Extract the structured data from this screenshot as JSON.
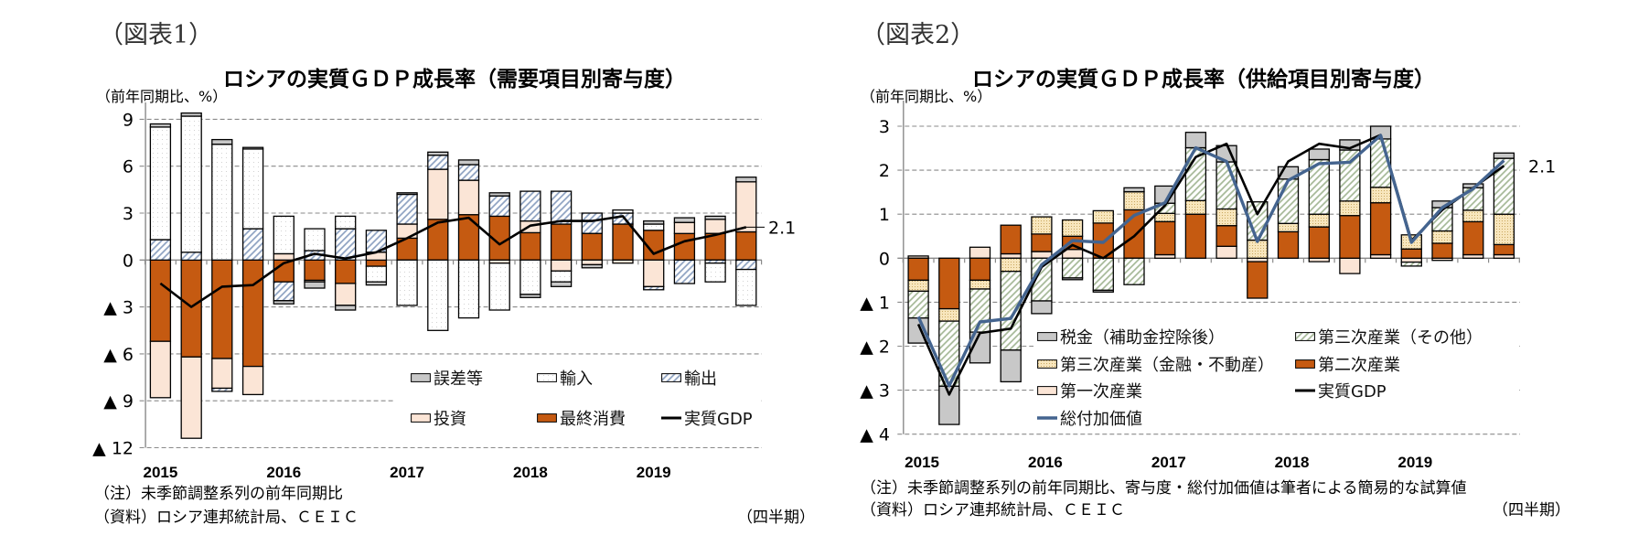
{
  "figures": [
    {
      "figure_label": "（図表1）",
      "note": "（注）未季節調整系列の前年同期比",
      "source": "（資料）ロシア連邦統計局、ＣＥＩＣ"
    },
    {
      "figure_label": "（図表2）",
      "note": "（注）未季節調整系列の前年同期比、寄与度・総付加価値は筆者による簡易的な試算値",
      "source": "（資料）ロシア連邦統計局、ＣＥＩＣ"
    }
  ],
  "chart_data": [
    {
      "type": "bar",
      "stacked": true,
      "title": "ロシアの実質ＧＤＰ成長率（需要項目別寄与度）",
      "ylabel": "（前年同期比、%）",
      "xlabel": "（四半期）",
      "categories": [
        "2015Q1",
        "2015Q2",
        "2015Q3",
        "2015Q4",
        "2016Q1",
        "2016Q2",
        "2016Q3",
        "2016Q4",
        "2017Q1",
        "2017Q2",
        "2017Q3",
        "2017Q4",
        "2018Q1",
        "2018Q2",
        "2018Q3",
        "2018Q4",
        "2019Q1",
        "2019Q2",
        "2019Q3",
        "2019Q4"
      ],
      "year_labels": [
        "2015",
        "2016",
        "2017",
        "2018",
        "2019"
      ],
      "ylim": [
        -12,
        9
      ],
      "yticks": [
        9,
        6,
        3,
        0,
        -3,
        -6,
        -9,
        -12
      ],
      "ytick_labels": [
        "9",
        "6",
        "3",
        "0",
        "▲ 3",
        "▲ 6",
        "▲ 9",
        "▲ 12"
      ],
      "grid": true,
      "legend_position": "bottom-right",
      "series": [
        {
          "key": "consumption",
          "name": "最終消費",
          "color": "#c55a11",
          "pattern": "solid",
          "values": [
            -5.2,
            -6.2,
            -6.3,
            -6.8,
            -1.4,
            -1.3,
            -1.5,
            -0.4,
            1.4,
            2.6,
            2.9,
            2.8,
            1.75,
            2.3,
            1.7,
            2.3,
            1.9,
            1.7,
            1.7,
            1.8
          ]
        },
        {
          "key": "investment",
          "name": "投資",
          "color": "#fbe5d6",
          "pattern": "solid",
          "values": [
            -3.6,
            -5.2,
            -1.9,
            -1.8,
            0.4,
            -0.1,
            -1.4,
            0.5,
            0.9,
            3.2,
            2.2,
            -0.2,
            0.75,
            -0.7,
            -0.3,
            -0.2,
            -1.7,
            0.7,
            0.9,
            3.2
          ]
        },
        {
          "key": "exports",
          "name": "輸出",
          "color": "#ffffff",
          "pattern": "hatch",
          "pattern_color": "#8ba0c0",
          "values": [
            1.3,
            0.5,
            -0.2,
            2.0,
            -1.2,
            0.6,
            2.0,
            1.4,
            1.9,
            0.9,
            1.0,
            1.3,
            1.9,
            2.1,
            1.3,
            0.7,
            -0.2,
            -1.5,
            -0.2,
            -0.6
          ]
        },
        {
          "key": "imports",
          "name": "輸入",
          "color": "#ffffff",
          "pattern": "dots",
          "pattern_color": "#d2d2d2",
          "values": [
            7.2,
            8.7,
            7.4,
            5.1,
            2.4,
            1.4,
            0.8,
            -1.0,
            -2.9,
            -4.5,
            -3.7,
            -3.0,
            -2.2,
            -0.7,
            0.0,
            0.2,
            0.4,
            0.0,
            -1.2,
            -2.3
          ]
        },
        {
          "key": "errors",
          "name": "誤差等",
          "color": "#c8c8c8",
          "pattern": "solid",
          "values": [
            0.2,
            0.2,
            0.3,
            0.1,
            -0.2,
            -0.4,
            -0.3,
            -0.2,
            0.1,
            0.2,
            0.3,
            0.2,
            -0.2,
            -0.3,
            -0.2,
            0.0,
            0.2,
            0.3,
            0.2,
            0.3
          ]
        }
      ],
      "line_series": [
        {
          "key": "real_gdp",
          "name": "実質GDP",
          "color": "#000000",
          "values": [
            -1.5,
            -3.0,
            -1.7,
            -1.6,
            -0.2,
            0.4,
            0.1,
            0.5,
            1.4,
            2.4,
            2.7,
            1.0,
            2.2,
            2.5,
            2.5,
            2.8,
            0.4,
            1.2,
            1.6,
            2.1
          ]
        }
      ],
      "legend": [
        {
          "label": "誤差等",
          "key": "errors"
        },
        {
          "label": "輸入",
          "key": "imports"
        },
        {
          "label": "輸出",
          "key": "exports"
        },
        {
          "label": "投資",
          "key": "investment"
        },
        {
          "label": "最終消費",
          "key": "consumption"
        },
        {
          "label": "実質GDP",
          "key": "real_gdp"
        }
      ],
      "annotation": {
        "text": "2.1",
        "value": 2.1,
        "at": "2019Q4"
      }
    },
    {
      "type": "bar",
      "stacked": true,
      "title": "ロシアの実質ＧＤＰ成長率（供給項目別寄与度）",
      "ylabel": "（前年同期比、%）",
      "xlabel": "（四半期）",
      "categories": [
        "2015Q1",
        "2015Q2",
        "2015Q3",
        "2015Q4",
        "2016Q1",
        "2016Q2",
        "2016Q3",
        "2016Q4",
        "2017Q1",
        "2017Q2",
        "2017Q3",
        "2017Q4",
        "2018Q1",
        "2018Q2",
        "2018Q3",
        "2018Q4",
        "2019Q1",
        "2019Q2",
        "2019Q3",
        "2019Q4"
      ],
      "year_labels": [
        "2015",
        "2016",
        "2017",
        "2018",
        "2019"
      ],
      "ylim": [
        -4,
        3
      ],
      "yticks": [
        3,
        2,
        1,
        0,
        -1,
        -2,
        -3,
        -4
      ],
      "ytick_labels": [
        "3",
        "2",
        "1",
        "0",
        "▲ 1",
        "▲ 2",
        "▲ 3",
        "▲ 4"
      ],
      "grid": true,
      "legend_position": "bottom-right",
      "series": [
        {
          "key": "primary",
          "name": "第一次産業",
          "color": "#fbe5d6",
          "pattern": "solid",
          "values": [
            0.05,
            0.0,
            0.25,
            0.1,
            0.15,
            0.2,
            0.0,
            0.0,
            0.08,
            0.0,
            0.27,
            -0.08,
            0.0,
            -0.08,
            -0.35,
            0.08,
            -0.09,
            -0.05,
            0.08,
            0.08
          ]
        },
        {
          "key": "secondary",
          "name": "第二次産業",
          "color": "#c55a11",
          "pattern": "solid",
          "values": [
            -0.5,
            -1.15,
            -0.5,
            0.65,
            0.4,
            0.3,
            0.8,
            1.1,
            0.75,
            1.0,
            0.47,
            -0.83,
            0.6,
            0.71,
            0.97,
            1.18,
            0.21,
            0.34,
            0.75,
            0.23
          ]
        },
        {
          "key": "financial",
          "name": "第三次産業（金融・不動産）",
          "color": "#f8e6bd",
          "pattern": "dots-dense",
          "pattern_color": "#c9a962",
          "values": [
            -0.25,
            -0.28,
            -0.2,
            -0.3,
            0.39,
            0.37,
            0.28,
            0.41,
            0.19,
            0.31,
            0.38,
            0.41,
            0.19,
            0.29,
            0.33,
            0.35,
            0.32,
            0.28,
            0.26,
            0.69
          ]
        },
        {
          "key": "tertiary_other",
          "name": "第三次産業（その他）",
          "color": "#ffffff",
          "pattern": "hatch",
          "pattern_color": "#a3b795",
          "values": [
            -0.61,
            -1.48,
            -0.98,
            -1.79,
            -0.97,
            -0.45,
            -0.73,
            -0.6,
            0.23,
            1.2,
            1.07,
            0.87,
            1.01,
            1.24,
            1.16,
            1.1,
            -0.09,
            0.53,
            0.51,
            1.27
          ]
        },
        {
          "key": "tax",
          "name": "税金（補助金控除後）",
          "color": "#c8c8c8",
          "pattern": "solid",
          "values": [
            -0.57,
            -0.87,
            -0.7,
            -0.72,
            -0.29,
            -0.04,
            -0.04,
            0.09,
            0.39,
            0.35,
            0.37,
            0.0,
            0.28,
            0.24,
            0.23,
            0.29,
            0.0,
            0.15,
            0.09,
            0.12
          ]
        }
      ],
      "line_series": [
        {
          "key": "real_gdp",
          "name": "実質GDP",
          "color": "#000000",
          "values": [
            -1.5,
            -3.1,
            -1.7,
            -1.6,
            -0.2,
            0.3,
            0.0,
            0.5,
            1.2,
            2.3,
            2.6,
            1.0,
            2.2,
            2.6,
            2.5,
            2.8,
            0.4,
            1.1,
            1.6,
            2.1
          ]
        },
        {
          "key": "gva",
          "name": "総付加価値",
          "color": "#44648f",
          "values": [
            -1.33,
            -2.9,
            -1.45,
            -1.37,
            -0.15,
            0.4,
            0.36,
            0.97,
            1.26,
            2.51,
            2.2,
            0.38,
            1.77,
            2.15,
            2.18,
            2.79,
            0.36,
            1.15,
            1.58,
            2.22
          ]
        }
      ],
      "legend": [
        {
          "label": "税金（補助金控除後）",
          "key": "tax"
        },
        {
          "label": "第三次産業（その他）",
          "key": "tertiary_other"
        },
        {
          "label": "第三次産業（金融・不動産）",
          "key": "financial"
        },
        {
          "label": "第二次産業",
          "key": "secondary"
        },
        {
          "label": "第一次産業",
          "key": "primary"
        },
        {
          "label": "実質GDP",
          "key": "real_gdp"
        },
        {
          "label": "総付加価値",
          "key": "gva"
        }
      ],
      "annotation": {
        "text": "2.1",
        "value": 2.1,
        "at": "2019Q4"
      }
    }
  ]
}
